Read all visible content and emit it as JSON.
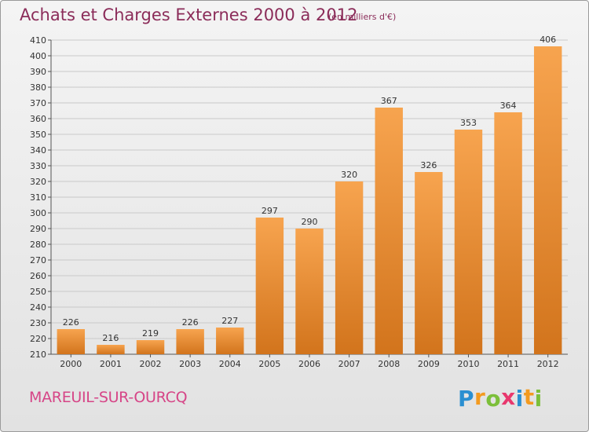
{
  "title": "Achats et Charges Externes 2000 à 2012",
  "unit": "(en milliers d'€)",
  "commune": "MAREUIL-SUR-OURCQ",
  "brand": {
    "letters": [
      "P",
      "r",
      "o",
      "x",
      "i",
      "t",
      "i"
    ],
    "colors": [
      "#2a8fd1",
      "#f39a1f",
      "#7cbf3a",
      "#e8386e",
      "#2a8fd1",
      "#f39a1f",
      "#7cbf3a"
    ]
  },
  "colors": {
    "bar_top": "#f7a44f",
    "bar_bottom": "#d2741c",
    "title": "#8b2c59",
    "commune": "#d64587"
  },
  "chart_data": {
    "type": "bar",
    "categories": [
      "2000",
      "2001",
      "2002",
      "2003",
      "2004",
      "2005",
      "2006",
      "2007",
      "2008",
      "2009",
      "2010",
      "2011",
      "2012"
    ],
    "values": [
      226,
      216,
      219,
      226,
      227,
      297,
      290,
      320,
      367,
      326,
      353,
      364,
      406
    ],
    "data_labels": [
      "226",
      "216",
      "219",
      "226",
      "227",
      "297",
      "290",
      "320",
      "367",
      "326",
      "353",
      "364",
      "406"
    ],
    "ylim": [
      210,
      410
    ],
    "yticks": [
      "210",
      "220",
      "230",
      "240",
      "250",
      "260",
      "270",
      "280",
      "290",
      "300",
      "310",
      "320",
      "330",
      "340",
      "350",
      "360",
      "370",
      "380",
      "390",
      "400",
      "410"
    ],
    "grid": true
  }
}
